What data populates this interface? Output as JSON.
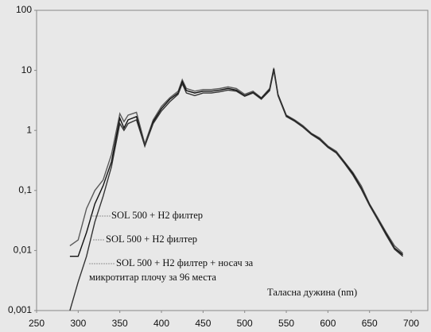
{
  "chart_data": {
    "type": "line",
    "log_y": true,
    "grid": false,
    "x_label": "Таласна дужина (nm)",
    "xlim": [
      250,
      720
    ],
    "xticks": [
      250,
      300,
      350,
      400,
      450,
      500,
      550,
      600,
      650,
      700
    ],
    "ylim": [
      0.001,
      100
    ],
    "yticks": [
      {
        "value": 0.001,
        "label": "0,001"
      },
      {
        "value": 0.01,
        "label": "0,01"
      },
      {
        "value": 0.1,
        "label": "0,1"
      },
      1,
      10,
      100
    ],
    "x": [
      290,
      300,
      310,
      320,
      330,
      340,
      350,
      355,
      360,
      370,
      380,
      390,
      400,
      410,
      420,
      425,
      430,
      440,
      450,
      460,
      470,
      480,
      490,
      500,
      510,
      520,
      530,
      535,
      540,
      550,
      560,
      570,
      580,
      590,
      600,
      610,
      620,
      630,
      640,
      650,
      660,
      670,
      680,
      690
    ],
    "series": [
      {
        "name": "SOL  500 + H2 филтер",
        "color": "#5a5a5a",
        "values": [
          0.012,
          0.015,
          0.05,
          0.1,
          0.15,
          0.4,
          1.9,
          1.4,
          1.8,
          2.0,
          0.6,
          1.5,
          2.5,
          3.5,
          4.5,
          7,
          5,
          4.5,
          4.8,
          4.8,
          5,
          5.3,
          5,
          4,
          4.5,
          3.5,
          5,
          11,
          4,
          1.8,
          1.5,
          1.2,
          0.9,
          0.75,
          0.55,
          0.45,
          0.3,
          0.2,
          0.12,
          0.06,
          0.035,
          0.02,
          0.012,
          0.009
        ]
      },
      {
        "name": "SOL  500 + H2 филтер",
        "color": "#111111",
        "values": [
          0.008,
          0.008,
          0.02,
          0.06,
          0.12,
          0.3,
          1.6,
          1.1,
          1.5,
          1.7,
          0.55,
          1.4,
          2.3,
          3.3,
          4.2,
          6.5,
          4.6,
          4.2,
          4.5,
          4.5,
          4.7,
          5,
          4.7,
          3.8,
          4.3,
          3.4,
          4.8,
          10.5,
          3.9,
          1.75,
          1.45,
          1.15,
          0.88,
          0.72,
          0.53,
          0.43,
          0.29,
          0.19,
          0.11,
          0.058,
          0.033,
          0.019,
          0.011,
          0.0085
        ]
      },
      {
        "name": "SOL  500 + H2 филтер + носач за микротитар плочу за 96 места",
        "color": "#333333",
        "values": [
          0.001,
          0.003,
          0.008,
          0.03,
          0.08,
          0.25,
          1.3,
          1.0,
          1.3,
          1.5,
          0.55,
          1.3,
          2.1,
          3.0,
          4.0,
          6.0,
          4.2,
          3.8,
          4.2,
          4.2,
          4.4,
          4.7,
          4.5,
          3.7,
          4.2,
          3.3,
          4.6,
          10,
          3.8,
          1.7,
          1.42,
          1.13,
          0.86,
          0.7,
          0.52,
          0.42,
          0.28,
          0.18,
          0.105,
          0.056,
          0.032,
          0.018,
          0.0105,
          0.008
        ]
      }
    ]
  }
}
